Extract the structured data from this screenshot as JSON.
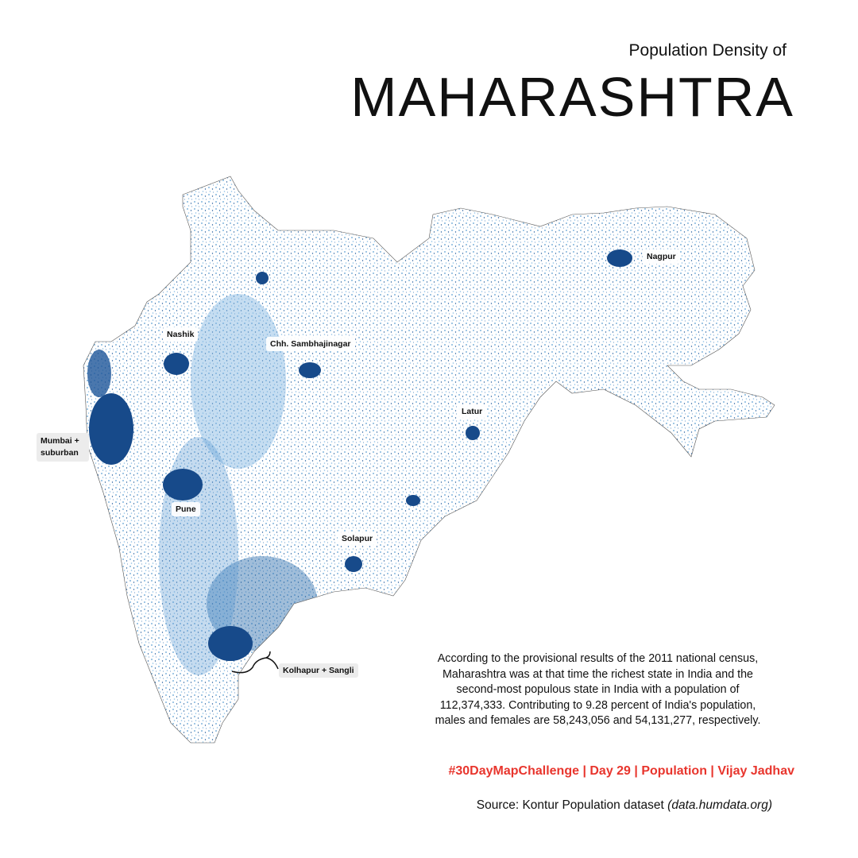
{
  "header": {
    "subtitle": "Population Density of",
    "title": "MAHARASHTRA"
  },
  "cities": [
    "Nashik",
    "Chh. Sambhajinagar",
    "Nagpur",
    "Latur",
    "Mumbai + suburban",
    "Pune",
    "Solapur",
    "Kolhapur + Sangli"
  ],
  "description": "According to the provisional results of the 2011 national census, Maharashtra was at that time the richest state in India and the second-most populous state in India with a population of 112,374,333. Contributing to 9.28 percent of India's population, males and females are 58,243,056 and 54,131,277, respectively.",
  "credit": "#30DayMapChallenge | Day 29 | Population | Vijay Jadhav",
  "source": {
    "text": "Source: Kontur Population dataset",
    "link": "(data.humdata.org)"
  }
}
